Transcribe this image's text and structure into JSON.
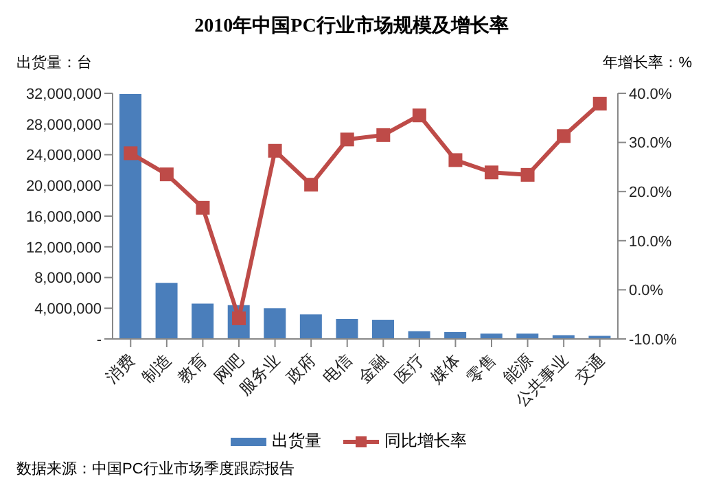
{
  "chart_data": {
    "type": "bar",
    "title": "2010年中国PC行业市场规模及增长率",
    "ylabel": "出货量：台",
    "y2label": "年增长率：%",
    "categories": [
      "消费",
      "制造",
      "教育",
      "网吧",
      "服务业",
      "政府",
      "电信",
      "金融",
      "医疗",
      "媒体",
      "零售",
      "能源",
      "公共事业",
      "交通"
    ],
    "series": [
      {
        "name": "出货量",
        "color": "#4a7ebb",
        "values": [
          31900000,
          7300000,
          4600000,
          4400000,
          4000000,
          3200000,
          2600000,
          2500000,
          1000000,
          900000,
          700000,
          700000,
          500000,
          400000
        ]
      },
      {
        "name": "同比增长率",
        "type": "line",
        "axis": "y2",
        "color": "#be4b48",
        "marker": "square",
        "values": [
          27.8,
          23.5,
          16.7,
          -5.8,
          28.3,
          21.4,
          30.6,
          31.5,
          35.5,
          26.4,
          23.9,
          23.4,
          31.3,
          37.9
        ]
      }
    ],
    "ylim": [
      0,
      32000000
    ],
    "yticks": [
      {
        "value": 0,
        "label": "-"
      },
      {
        "value": 4000000,
        "label": "4,000,000"
      },
      {
        "value": 8000000,
        "label": "8,000,000"
      },
      {
        "value": 12000000,
        "label": "12,000,000"
      },
      {
        "value": 16000000,
        "label": "16,000,000"
      },
      {
        "value": 20000000,
        "label": "20,000,000"
      },
      {
        "value": 24000000,
        "label": "24,000,000"
      },
      {
        "value": 28000000,
        "label": "28,000,000"
      },
      {
        "value": 32000000,
        "label": "32,000,000"
      }
    ],
    "y2lim": [
      -10,
      40
    ],
    "y2ticks": [
      {
        "value": -10,
        "label": "-10.0%"
      },
      {
        "value": 0,
        "label": "0.0%"
      },
      {
        "value": 10,
        "label": "10.0%"
      },
      {
        "value": 20,
        "label": "20.0%"
      },
      {
        "value": 30,
        "label": "30.0%"
      },
      {
        "value": 40,
        "label": "40.0%"
      }
    ],
    "grid": false,
    "legend": "bottom",
    "annotations": [
      "数据来源：中国PC行业市场季度跟踪报告"
    ]
  }
}
